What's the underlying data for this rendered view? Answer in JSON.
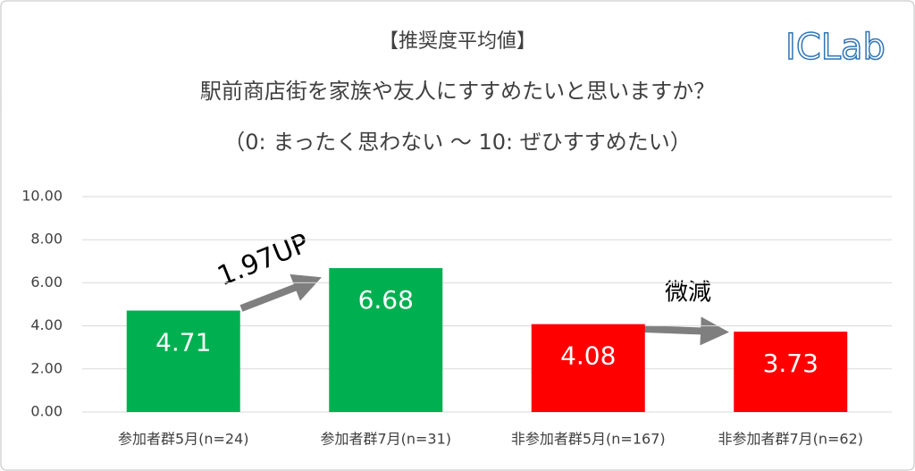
{
  "chart_data": {
    "type": "bar",
    "title": "【推奨度平均値】",
    "subtitle": [
      "駅前商店街を家族や友人にすすめたいと思いますか？",
      "（0: まったく思わない ～ 10: ぜひすすめたい）"
    ],
    "logo": "ICLab",
    "categories": [
      "参加者群5月(n=24)",
      "参加者群7月(n=31)",
      "非参加者群5月(n=167)",
      "非参加者群7月(n=62)"
    ],
    "values": [
      4.71,
      6.68,
      4.08,
      3.73
    ],
    "colors": [
      "#00b050",
      "#00b050",
      "#ff0000",
      "#ff0000"
    ],
    "ylim": [
      0,
      10
    ],
    "yticks": [
      {
        "value": 0,
        "label": "0.00"
      },
      {
        "value": 2,
        "label": "2.00"
      },
      {
        "value": 4,
        "label": "4.00"
      },
      {
        "value": 6,
        "label": "6.00"
      },
      {
        "value": 8,
        "label": "8.00"
      },
      {
        "value": 10,
        "label": "10.00"
      }
    ],
    "grid": true,
    "annotations": [
      "1.97UP",
      "微減"
    ]
  }
}
